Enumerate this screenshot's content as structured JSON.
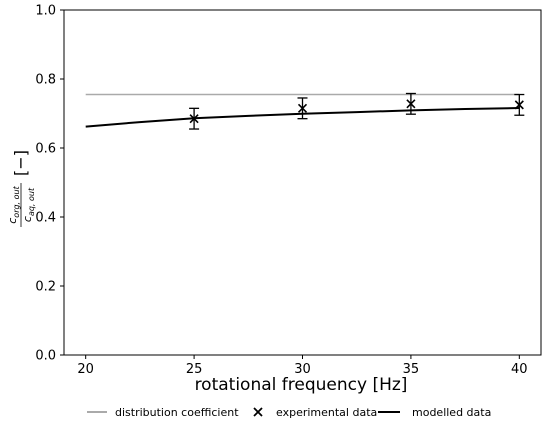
{
  "chart_data": {
    "type": "line",
    "xlabel": "rotational frequency [Hz]",
    "ylabel": {
      "numerator": "c",
      "numerator_sub": "org, out",
      "denominator": "c",
      "denominator_sub": "aq, out",
      "unit": "[−]"
    },
    "xlim": [
      19,
      41
    ],
    "ylim": [
      0,
      1.0
    ],
    "xticks": [
      20,
      25,
      30,
      35,
      40
    ],
    "yticks": [
      0.0,
      0.2,
      0.4,
      0.6,
      0.8,
      1.0
    ],
    "ytick_labels": [
      "0.0",
      "0.2",
      "0.4",
      "0.6",
      "0.8",
      "1.0"
    ],
    "grid": false,
    "legend_position": "bottom",
    "series": [
      {
        "name": "distribution coefficient",
        "kind": "line",
        "color": "#aaaaaa",
        "x": [
          20,
          40
        ],
        "y": [
          0.755,
          0.755
        ]
      },
      {
        "name": "experimental data",
        "kind": "scatter-errorbar",
        "color": "#000000",
        "marker": "x",
        "x": [
          25,
          30,
          35,
          40
        ],
        "y": [
          0.685,
          0.715,
          0.728,
          0.725
        ],
        "yerr": [
          0.03,
          0.03,
          0.03,
          0.03
        ]
      },
      {
        "name": "modelled data",
        "kind": "line",
        "color": "#000000",
        "x": [
          20,
          22.5,
          25,
          27.5,
          30,
          32.5,
          35,
          37.5,
          40
        ],
        "y": [
          0.662,
          0.675,
          0.686,
          0.693,
          0.699,
          0.704,
          0.709,
          0.713,
          0.716
        ]
      }
    ]
  }
}
